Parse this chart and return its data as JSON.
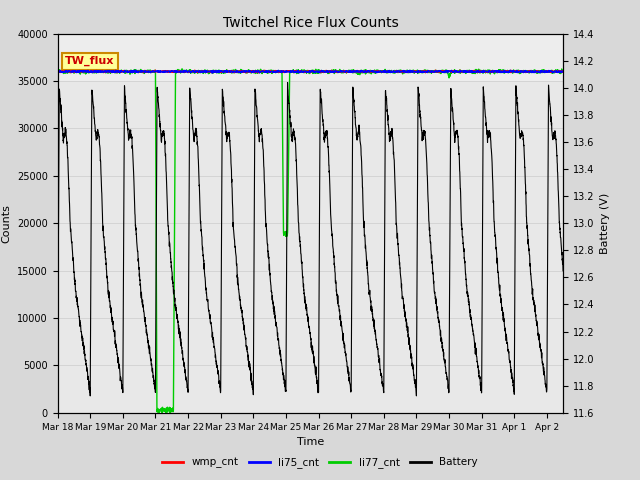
{
  "title": "Twitchel Rice Flux Counts",
  "xlabel": "Time",
  "ylabel_left": "Counts",
  "ylabel_right": "Battery (V)",
  "xlim_days": [
    0,
    15.5
  ],
  "ylim_left": [
    0,
    40000
  ],
  "ylim_right": [
    11.6,
    14.4
  ],
  "x_tick_labels": [
    "Mar 18",
    "Mar 19",
    "Mar 20",
    "Mar 21",
    "Mar 22",
    "Mar 23",
    "Mar 24",
    "Mar 25",
    "Mar 26",
    "Mar 27",
    "Mar 28",
    "Mar 29",
    "Mar 30",
    "Mar 31",
    "Apr 1",
    "Apr 2"
  ],
  "x_tick_positions": [
    0,
    1,
    2,
    3,
    4,
    5,
    6,
    7,
    8,
    9,
    10,
    11,
    12,
    13,
    14,
    15
  ],
  "legend_labels": [
    "wmp_cnt",
    "li75_cnt",
    "li77_cnt",
    "Battery"
  ],
  "legend_colors": [
    "#ff0000",
    "#0000ff",
    "#00ff00",
    "#000000"
  ],
  "fig_bg_color": "#d8d8d8",
  "plot_bg_color": "#e8e8e8",
  "plot_bg_top_color": "#f5f5f5",
  "yticks_left": [
    0,
    5000,
    10000,
    15000,
    20000,
    25000,
    30000,
    35000,
    40000
  ],
  "yticks_right": [
    11.6,
    11.8,
    12.0,
    12.2,
    12.4,
    12.6,
    12.8,
    13.0,
    13.2,
    13.4,
    13.6,
    13.8,
    14.0,
    14.2,
    14.4
  ],
  "grid_color": "#cccccc",
  "annotation_text": "TW_flux",
  "annotation_fg": "#cc0000",
  "annotation_bg": "#ffff99",
  "annotation_border": "#cc8800",
  "li77_flat": 36000,
  "li75_flat": 36000,
  "wmp_flat": 36000
}
